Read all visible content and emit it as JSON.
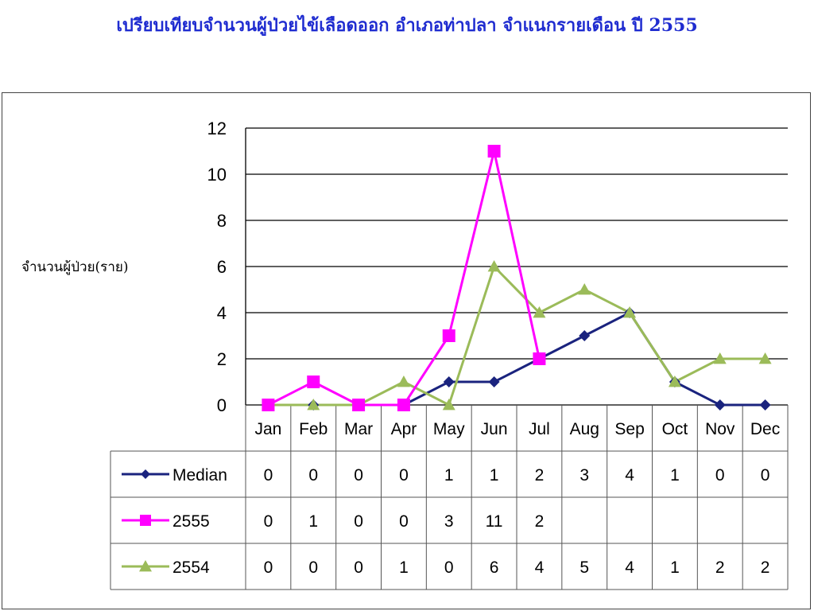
{
  "title": "เปรียบเทียบจำนวนผู้ป่วยไข้เลือดออก อำเภอท่าปลา จำแนกรายเดือน ปี 2555",
  "chart_data": {
    "type": "line",
    "title": "เปรียบเทียบจำนวนผู้ป่วยไข้เลือดออก อำเภอท่าปลา จำแนกรายเดือน ปี 2555",
    "xlabel": "",
    "ylabel": "จำนวนผู้ป่วย(ราย)",
    "ylim": [
      0,
      12
    ],
    "yticks": [
      0,
      2,
      4,
      6,
      8,
      10,
      12
    ],
    "grid": true,
    "legend": "data-table",
    "categories": [
      "Jan",
      "Feb",
      "Mar",
      "Apr",
      "May",
      "Jun",
      "Jul",
      "Aug",
      "Sep",
      "Oct",
      "Nov",
      "Dec"
    ],
    "series": [
      {
        "name": "Median",
        "color": "#1a237e",
        "marker": "diamond",
        "values": [
          0,
          0,
          0,
          0,
          1,
          1,
          2,
          3,
          4,
          1,
          0,
          0
        ]
      },
      {
        "name": "2555",
        "color": "#ff00ff",
        "marker": "square",
        "values": [
          0,
          1,
          0,
          0,
          3,
          11,
          2,
          null,
          null,
          null,
          null,
          null
        ]
      },
      {
        "name": "2554",
        "color": "#9bbb59",
        "marker": "triangle",
        "values": [
          0,
          0,
          0,
          1,
          0,
          6,
          4,
          5,
          4,
          1,
          2,
          2
        ]
      }
    ]
  }
}
